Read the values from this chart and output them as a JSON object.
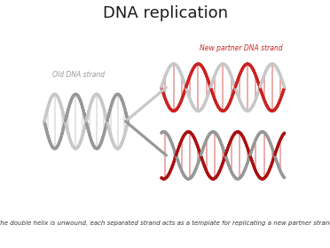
{
  "title": "DNA replication",
  "subtitle": "The double helix is unwound, each separated strand acts as a template for replicating a new partner strand",
  "label_old": "Old DNA strand",
  "label_new": "New partner DNA strand",
  "bg_color": "#ffffff",
  "gray1": "#c8c8c8",
  "gray2": "#989898",
  "red1": "#cc2222",
  "red2": "#aa1111",
  "rung_gray": "#d8d8d8",
  "rung_red": "#e08888",
  "title_fontsize": 13,
  "label_fontsize": 5.5,
  "subtitle_fontsize": 5.0,
  "title_color": "#1a1a1a",
  "old_label_color": "#999999",
  "new_label_color": "#cc2222",
  "subtitle_color": "#333333"
}
